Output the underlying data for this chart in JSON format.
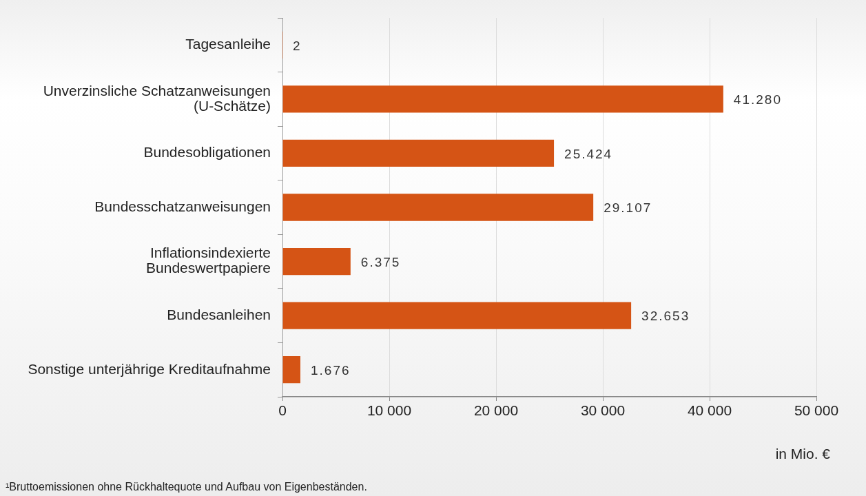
{
  "chart_data": {
    "type": "bar",
    "orientation": "horizontal",
    "categories": [
      "Tagesanleihe",
      "Unverzinsliche Schatzanweisungen\n(U-Schätze)",
      "Bundesobligationen",
      "Bundesschatzanweisungen",
      "Inflationsindexierte\nBundeswertpapiere",
      "Bundesanleihen",
      "Sonstige unterjährige Kreditaufnahme"
    ],
    "values": [
      2,
      41280,
      25424,
      29107,
      6375,
      32653,
      1676
    ],
    "value_labels": [
      "2",
      "41.280",
      "25.424",
      "29.107",
      "6.375",
      "32.653",
      "1.676"
    ],
    "color": "#d55415",
    "xlim": [
      0,
      50000
    ],
    "xticks": [
      0,
      {
        "value": 10000,
        "label": "10 000"
      },
      {
        "value": 20000,
        "label": "20 000"
      },
      {
        "value": 30000,
        "label": "30 000"
      },
      {
        "value": 40000,
        "label": "40 000"
      },
      {
        "value": 50000,
        "label": "50 000"
      }
    ],
    "grid": "x",
    "xlabel": "in Mio. €",
    "annotations": [
      "¹Bruttoemissionen ohne Rückhaltequote und Aufbau von Eigenbeständen."
    ]
  }
}
